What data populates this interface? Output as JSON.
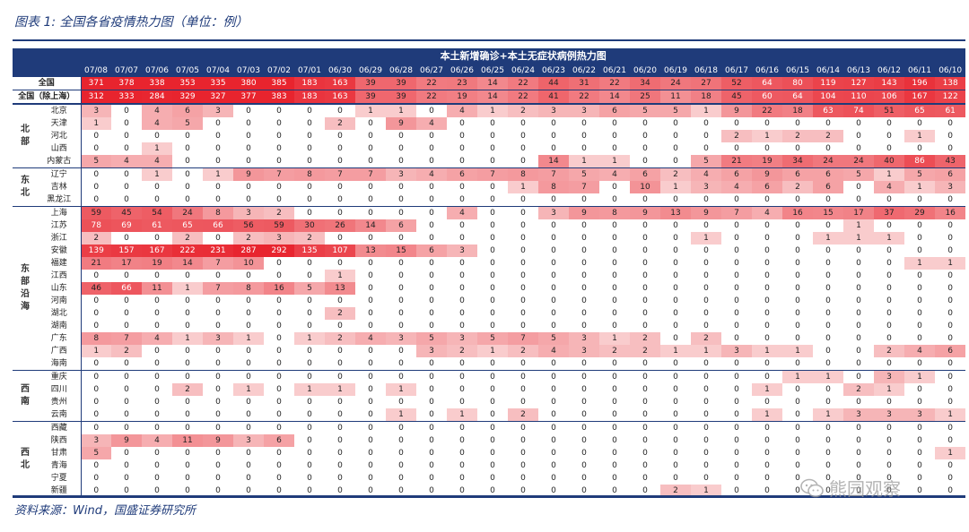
{
  "title": "图表 1:  全国各省疫情热力图（单位：例）",
  "table_title": "本土新增确诊+本土无症状病例热力图",
  "dates": [
    "07/08",
    "07/07",
    "07/06",
    "07/05",
    "07/04",
    "07/03",
    "07/02",
    "07/01",
    "06/30",
    "06/29",
    "06/28",
    "06/27",
    "06/26",
    "06/25",
    "06/24",
    "06/23",
    "06/22",
    "06/21",
    "06/20",
    "06/19",
    "06/18",
    "06/17",
    "06/16",
    "06/15",
    "06/14",
    "06/13",
    "06/12",
    "06/11",
    "06/10"
  ],
  "national": [
    {
      "label": "全国",
      "values": [
        371,
        378,
        338,
        353,
        335,
        380,
        385,
        183,
        163,
        39,
        39,
        22,
        23,
        14,
        22,
        44,
        31,
        22,
        34,
        24,
        27,
        52,
        64,
        80,
        119,
        127,
        143,
        196,
        138
      ]
    },
    {
      "label": "全国（除上海）",
      "values": [
        312,
        333,
        284,
        329,
        327,
        377,
        383,
        183,
        163,
        39,
        39,
        22,
        19,
        14,
        22,
        41,
        22,
        14,
        25,
        11,
        18,
        45,
        60,
        64,
        104,
        110,
        106,
        167,
        122
      ]
    }
  ],
  "groups": [
    {
      "region": "北部",
      "rows": [
        {
          "label": "北京",
          "values": [
            3,
            0,
            4,
            6,
            3,
            0,
            0,
            0,
            0,
            1,
            1,
            0,
            4,
            1,
            2,
            3,
            3,
            6,
            5,
            5,
            1,
            9,
            22,
            18,
            63,
            74,
            51,
            65,
            61
          ]
        },
        {
          "label": "天津",
          "values": [
            1,
            0,
            4,
            5,
            0,
            0,
            0,
            0,
            2,
            0,
            9,
            4,
            0,
            0,
            0,
            0,
            0,
            0,
            0,
            0,
            0,
            0,
            0,
            0,
            0,
            0,
            0,
            0,
            0
          ]
        },
        {
          "label": "河北",
          "values": [
            0,
            0,
            0,
            0,
            0,
            0,
            0,
            0,
            0,
            0,
            0,
            0,
            0,
            0,
            0,
            0,
            0,
            0,
            0,
            0,
            0,
            2,
            1,
            2,
            2,
            0,
            0,
            1,
            0
          ]
        },
        {
          "label": "山西",
          "values": [
            0,
            0,
            1,
            0,
            0,
            0,
            0,
            0,
            0,
            0,
            0,
            0,
            0,
            0,
            0,
            0,
            0,
            0,
            0,
            0,
            0,
            0,
            0,
            0,
            0,
            0,
            0,
            0,
            0
          ]
        },
        {
          "label": "内蒙古",
          "values": [
            5,
            4,
            4,
            0,
            0,
            0,
            0,
            0,
            0,
            0,
            0,
            0,
            0,
            0,
            0,
            14,
            1,
            1,
            0,
            0,
            5,
            21,
            19,
            34,
            24,
            24,
            40,
            86,
            43
          ]
        }
      ]
    },
    {
      "region": "东北",
      "rows": [
        {
          "label": "辽宁",
          "values": [
            0,
            0,
            1,
            0,
            1,
            9,
            7,
            8,
            7,
            7,
            3,
            4,
            6,
            7,
            8,
            7,
            5,
            4,
            6,
            2,
            4,
            6,
            9,
            6,
            6,
            5,
            1,
            5,
            6
          ]
        },
        {
          "label": "吉林",
          "values": [
            0,
            0,
            0,
            0,
            0,
            0,
            0,
            0,
            0,
            0,
            0,
            0,
            0,
            0,
            1,
            8,
            7,
            0,
            10,
            1,
            3,
            4,
            6,
            2,
            6,
            0,
            4,
            1,
            3
          ]
        },
        {
          "label": "黑龙江",
          "values": [
            0,
            0,
            0,
            0,
            0,
            0,
            0,
            0,
            0,
            0,
            0,
            0,
            0,
            0,
            0,
            0,
            0,
            0,
            0,
            0,
            0,
            0,
            0,
            0,
            0,
            0,
            0,
            0,
            0
          ]
        }
      ]
    },
    {
      "region": "东部沿海",
      "rows": [
        {
          "label": "上海",
          "values": [
            59,
            45,
            54,
            24,
            8,
            3,
            2,
            0,
            0,
            0,
            0,
            0,
            4,
            0,
            0,
            3,
            9,
            8,
            9,
            13,
            9,
            7,
            4,
            16,
            15,
            17,
            37,
            29,
            16
          ]
        },
        {
          "label": "江苏",
          "values": [
            78,
            69,
            61,
            65,
            66,
            56,
            59,
            30,
            26,
            14,
            6,
            0,
            0,
            0,
            0,
            0,
            0,
            0,
            0,
            0,
            0,
            0,
            0,
            0,
            0,
            1,
            0,
            0,
            0
          ]
        },
        {
          "label": "浙江",
          "values": [
            2,
            0,
            0,
            2,
            0,
            2,
            3,
            2,
            0,
            0,
            0,
            0,
            0,
            0,
            0,
            0,
            0,
            0,
            0,
            0,
            1,
            0,
            0,
            0,
            1,
            1,
            1,
            0,
            0
          ]
        },
        {
          "label": "安徽",
          "values": [
            139,
            157,
            167,
            222,
            231,
            287,
            292,
            135,
            107,
            13,
            15,
            6,
            3,
            0,
            0,
            0,
            0,
            0,
            0,
            0,
            0,
            0,
            0,
            0,
            0,
            0,
            0,
            0,
            0
          ]
        },
        {
          "label": "福建",
          "values": [
            21,
            17,
            19,
            14,
            7,
            10,
            0,
            0,
            0,
            0,
            0,
            0,
            0,
            0,
            0,
            0,
            0,
            0,
            0,
            0,
            0,
            0,
            0,
            0,
            0,
            0,
            0,
            1,
            1
          ]
        },
        {
          "label": "江西",
          "values": [
            0,
            0,
            0,
            0,
            0,
            0,
            0,
            0,
            1,
            0,
            0,
            0,
            0,
            0,
            0,
            0,
            0,
            0,
            0,
            0,
            0,
            0,
            0,
            0,
            0,
            0,
            0,
            0,
            0
          ]
        },
        {
          "label": "山东",
          "values": [
            46,
            66,
            11,
            1,
            7,
            8,
            16,
            5,
            13,
            0,
            0,
            0,
            0,
            0,
            0,
            0,
            0,
            0,
            0,
            0,
            0,
            0,
            0,
            0,
            0,
            0,
            0,
            0,
            0
          ]
        },
        {
          "label": "河南",
          "values": [
            0,
            0,
            0,
            0,
            0,
            0,
            0,
            0,
            0,
            0,
            0,
            0,
            0,
            0,
            0,
            0,
            0,
            0,
            0,
            0,
            0,
            0,
            0,
            0,
            0,
            0,
            0,
            0,
            0
          ]
        },
        {
          "label": "湖北",
          "values": [
            0,
            0,
            0,
            0,
            0,
            0,
            0,
            0,
            2,
            0,
            0,
            0,
            0,
            0,
            0,
            0,
            0,
            0,
            0,
            0,
            0,
            0,
            0,
            0,
            0,
            0,
            0,
            0,
            0
          ]
        },
        {
          "label": "湖南",
          "values": [
            0,
            0,
            0,
            0,
            0,
            0,
            0,
            0,
            0,
            0,
            0,
            0,
            0,
            0,
            0,
            0,
            0,
            0,
            0,
            0,
            0,
            0,
            0,
            0,
            0,
            0,
            0,
            0,
            0
          ]
        },
        {
          "label": "广东",
          "values": [
            8,
            7,
            4,
            1,
            3,
            1,
            0,
            1,
            2,
            4,
            3,
            5,
            3,
            5,
            7,
            5,
            3,
            1,
            2,
            0,
            2,
            0,
            0,
            0,
            0,
            0,
            0,
            0,
            0
          ]
        },
        {
          "label": "广西",
          "values": [
            1,
            2,
            0,
            0,
            0,
            0,
            0,
            0,
            0,
            0,
            0,
            3,
            2,
            1,
            2,
            4,
            3,
            2,
            2,
            1,
            1,
            3,
            1,
            1,
            0,
            0,
            2,
            4,
            6
          ]
        },
        {
          "label": "海南",
          "values": [
            0,
            0,
            0,
            0,
            0,
            0,
            0,
            0,
            0,
            0,
            0,
            0,
            0,
            0,
            0,
            0,
            0,
            0,
            0,
            0,
            0,
            0,
            0,
            0,
            0,
            0,
            0,
            0,
            0
          ]
        }
      ]
    },
    {
      "region": "西南",
      "rows": [
        {
          "label": "重庆",
          "values": [
            0,
            0,
            0,
            0,
            0,
            0,
            0,
            0,
            0,
            0,
            0,
            0,
            0,
            0,
            0,
            0,
            0,
            0,
            0,
            0,
            0,
            0,
            0,
            1,
            1,
            0,
            3,
            1,
            0
          ]
        },
        {
          "label": "四川",
          "values": [
            0,
            0,
            0,
            2,
            0,
            1,
            0,
            1,
            1,
            0,
            1,
            0,
            0,
            0,
            0,
            0,
            0,
            0,
            0,
            0,
            0,
            0,
            1,
            0,
            0,
            2,
            1,
            0,
            0
          ]
        },
        {
          "label": "贵州",
          "values": [
            0,
            0,
            0,
            0,
            0,
            0,
            0,
            0,
            0,
            0,
            0,
            0,
            0,
            0,
            0,
            0,
            0,
            0,
            0,
            0,
            0,
            0,
            0,
            0,
            0,
            0,
            0,
            0,
            0
          ]
        },
        {
          "label": "云南",
          "values": [
            0,
            0,
            0,
            0,
            0,
            0,
            0,
            0,
            0,
            0,
            1,
            0,
            1,
            0,
            2,
            0,
            0,
            0,
            0,
            0,
            0,
            0,
            1,
            0,
            1,
            3,
            3,
            3,
            1
          ]
        }
      ]
    },
    {
      "region": "西北",
      "rows": [
        {
          "label": "西藏",
          "values": [
            0,
            0,
            0,
            0,
            0,
            0,
            0,
            0,
            0,
            0,
            0,
            0,
            0,
            0,
            0,
            0,
            0,
            0,
            0,
            0,
            0,
            0,
            0,
            0,
            0,
            0,
            0,
            0,
            0
          ]
        },
        {
          "label": "陕西",
          "values": [
            3,
            9,
            4,
            11,
            9,
            3,
            6,
            0,
            0,
            0,
            0,
            0,
            0,
            0,
            0,
            0,
            0,
            0,
            0,
            0,
            0,
            0,
            0,
            0,
            0,
            0,
            0,
            0,
            0
          ]
        },
        {
          "label": "甘肃",
          "values": [
            5,
            0,
            0,
            0,
            0,
            0,
            0,
            0,
            0,
            0,
            0,
            0,
            0,
            0,
            0,
            0,
            0,
            0,
            0,
            0,
            0,
            0,
            0,
            0,
            0,
            0,
            0,
            0,
            1
          ]
        },
        {
          "label": "青海",
          "values": [
            0,
            0,
            0,
            0,
            0,
            0,
            0,
            0,
            0,
            0,
            0,
            0,
            0,
            0,
            0,
            0,
            0,
            0,
            0,
            0,
            0,
            0,
            0,
            0,
            0,
            0,
            0,
            0,
            0
          ]
        },
        {
          "label": "宁夏",
          "values": [
            0,
            0,
            0,
            0,
            0,
            0,
            0,
            0,
            0,
            0,
            0,
            0,
            0,
            0,
            0,
            0,
            0,
            0,
            0,
            0,
            0,
            0,
            0,
            0,
            0,
            0,
            0,
            0,
            0
          ]
        },
        {
          "label": "新疆",
          "values": [
            0,
            0,
            0,
            0,
            0,
            0,
            0,
            0,
            0,
            0,
            0,
            0,
            0,
            0,
            0,
            0,
            0,
            0,
            0,
            2,
            1,
            0,
            0,
            0,
            0,
            0,
            0,
            0,
            0
          ]
        }
      ]
    }
  ],
  "source": "资料来源：Wind，国盛证券研究所",
  "watermark": "熊园观察",
  "colors": {
    "header_bg": "#1f3b7a",
    "header_text": "#ffffff",
    "heat_max": "#e8242e",
    "heat_min": "#fbe3e3"
  }
}
